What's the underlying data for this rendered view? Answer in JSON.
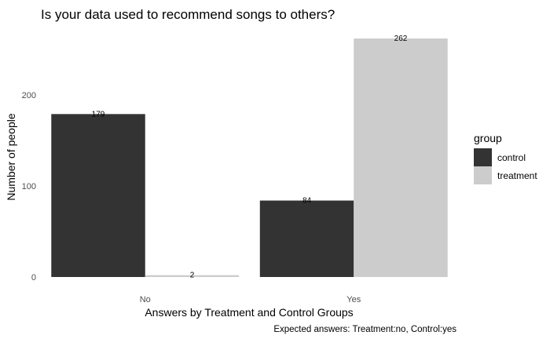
{
  "chart_data": {
    "type": "bar",
    "title": "Is your data used to recommend songs to others?",
    "xlabel": "Answers by Treatment and Control Groups",
    "ylabel": "Number of people",
    "caption": "Expected answers: Treatment:no, Control:yes",
    "categories": [
      "No",
      "Yes"
    ],
    "series": [
      {
        "name": "control",
        "values": [
          179,
          84
        ],
        "color": "#333333"
      },
      {
        "name": "treatment",
        "values": [
          2,
          262
        ],
        "color": "#cccccc"
      }
    ],
    "ylim": [
      0,
      275
    ],
    "yticks": [
      0,
      100,
      200
    ],
    "grid": false,
    "legend": {
      "title": "group",
      "placement": "right"
    }
  }
}
